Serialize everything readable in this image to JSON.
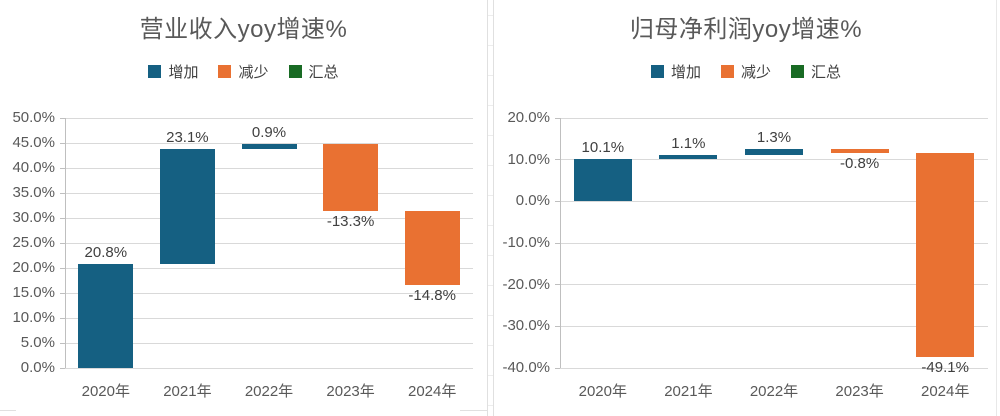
{
  "page": {
    "background": "#ffffff"
  },
  "colors": {
    "increase": "#156082",
    "decrease": "#E97132",
    "total": "#196B24",
    "gridline": "#d9d9d9",
    "axis_line": "#bfbfbf",
    "title_text": "#595959",
    "axis_text": "#595959",
    "data_label_text": "#404040"
  },
  "chart_data": [
    {
      "type": "bar",
      "subtype": "waterfall",
      "title": "营业收入yoy增速%",
      "categories": [
        "2020年",
        "2021年",
        "2022年",
        "2023年",
        "2024年"
      ],
      "values": [
        20.8,
        23.1,
        0.9,
        -13.3,
        -14.8
      ],
      "data_labels": [
        "20.8%",
        "23.1%",
        "0.9%",
        "-13.3%",
        "-14.8%"
      ],
      "cumulative": [
        20.8,
        43.9,
        44.8,
        31.5,
        16.7
      ],
      "ylim": [
        0,
        50
      ],
      "ytick_step": 5,
      "ytick_labels": [
        "50.0%",
        "45.0%",
        "40.0%",
        "35.0%",
        "30.0%",
        "25.0%",
        "20.0%",
        "15.0%",
        "10.0%",
        "5.0%",
        "0.0%"
      ],
      "grid": true,
      "legend_position": "top",
      "legend_items": [
        {
          "label": "增加",
          "color": "#156082"
        },
        {
          "label": "减少",
          "color": "#E97132"
        },
        {
          "label": "汇总",
          "color": "#196B24"
        }
      ]
    },
    {
      "type": "bar",
      "subtype": "waterfall",
      "title": "归母净利润yoy增速%",
      "categories": [
        "2020年",
        "2021年",
        "2022年",
        "2023年",
        "2024年"
      ],
      "values": [
        10.1,
        1.1,
        1.3,
        -0.8,
        -49.1
      ],
      "data_labels": [
        "10.1%",
        "1.1%",
        "1.3%",
        "-0.8%",
        "-49.1%"
      ],
      "cumulative": [
        10.1,
        11.2,
        12.5,
        11.7,
        -37.4
      ],
      "ylim": [
        -40,
        20
      ],
      "ytick_step": 10,
      "ytick_labels": [
        "20.0%",
        "10.0%",
        "0.0%",
        "-10.0%",
        "-20.0%",
        "-30.0%",
        "-40.0%"
      ],
      "grid": true,
      "legend_position": "top",
      "legend_items": [
        {
          "label": "增加",
          "color": "#156082"
        },
        {
          "label": "减少",
          "color": "#E97132"
        },
        {
          "label": "汇总",
          "color": "#196B24"
        }
      ]
    }
  ]
}
